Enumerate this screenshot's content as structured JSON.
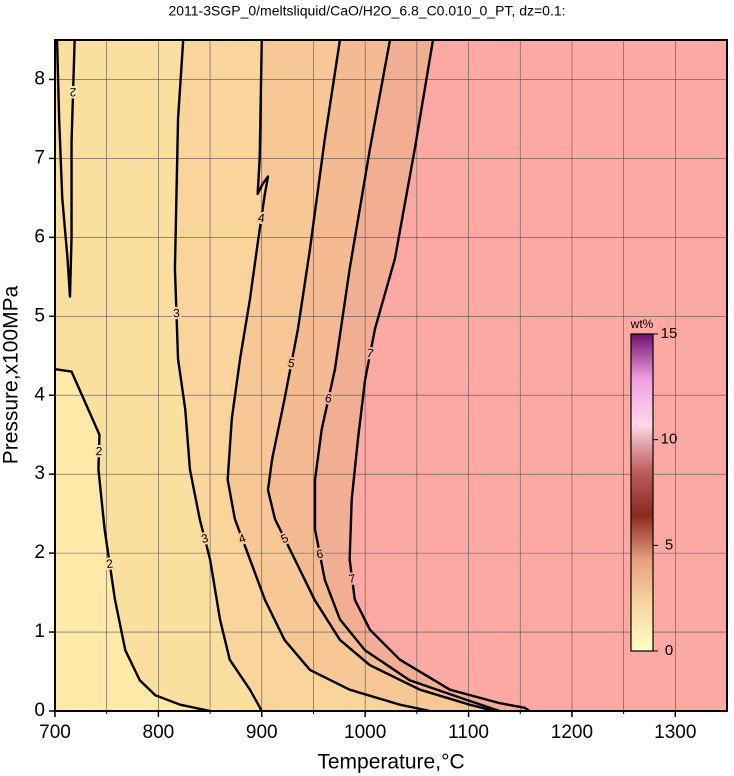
{
  "chart_data": {
    "type": "contour",
    "title": "2011-3SGP_0/meltsliquid/CaO/H2O_6.8_C0.010_0_PT, dz=0.1:",
    "xlabel": "Temperature,°C",
    "ylabel": "Pressure,x100MPa",
    "xlim": [
      700,
      1350
    ],
    "ylim": [
      0,
      8.5
    ],
    "xticks": [
      700,
      800,
      900,
      1000,
      1100,
      1200,
      1300
    ],
    "xminorticks": [
      750,
      850,
      950,
      1050,
      1150,
      1250
    ],
    "yticks": [
      0,
      1,
      2,
      3,
      4,
      5,
      6,
      7,
      8
    ],
    "grid": true,
    "background": "#fde9a8",
    "contours": [
      {
        "level": 2,
        "fill": "#fbdf9f",
        "x": [
          700,
          716,
          743,
          742,
          748,
          758,
          768,
          782,
          797,
          821,
          850
        ],
        "y": [
          4.33,
          4.3,
          3.5,
          3.06,
          2.3,
          1.41,
          0.77,
          0.39,
          0.2,
          0.08,
          0
        ]
      },
      {
        "level": 2,
        "fill": null,
        "x": [
          702,
          704,
          707,
          712,
          714.5,
          716,
          716,
          719
        ],
        "y": [
          8.5,
          7.5,
          6.5,
          5.75,
          5.25,
          6.0,
          7.2,
          8.5
        ]
      },
      {
        "level": 3,
        "fill": "#f9d49b",
        "x": [
          824,
          819,
          816,
          819,
          826,
          830.5,
          840,
          850,
          859.6,
          869,
          888.6,
          900
        ],
        "y": [
          8.5,
          7.5,
          5.6,
          4.46,
          3.82,
          3.06,
          2.43,
          1.92,
          1.16,
          0.65,
          0.27,
          0
        ]
      },
      {
        "level": 4,
        "fill": "#f7c896",
        "x": [
          900,
          898,
          896,
          901,
          906,
          903,
          896,
          888.6,
          879,
          871,
          867,
          874,
          888.6,
          903,
          922,
          946.6,
          985,
          1033.6,
          1062.7
        ],
        "y": [
          8.5,
          7.0,
          6.55,
          6.68,
          6.77,
          6.55,
          5.92,
          5.22,
          4.46,
          3.7,
          2.93,
          2.43,
          1.92,
          1.41,
          0.9,
          0.52,
          0.27,
          0.08,
          0
        ]
      },
      {
        "level": 5,
        "fill": "#f4bb93",
        "x": [
          975.6,
          961,
          946.6,
          935,
          922,
          910,
          906,
          912.8,
          932,
          951,
          975.6,
          1004.6,
          1053,
          1101,
          1125.5
        ],
        "y": [
          8.5,
          7.25,
          5.85,
          4.84,
          3.95,
          3.19,
          2.8,
          2.43,
          1.92,
          1.41,
          0.9,
          0.58,
          0.27,
          0.08,
          0
        ]
      },
      {
        "level": 6,
        "fill": "#f1ae92",
        "x": [
          1024,
          1004.6,
          985,
          970.8,
          958,
          951.5,
          951.5,
          961,
          975.6,
          999.8,
          1043,
          1091.7,
          1130
        ],
        "y": [
          8.5,
          7.12,
          5.6,
          4.33,
          3.57,
          2.93,
          2.3,
          1.66,
          1.16,
          0.77,
          0.39,
          0.17,
          0
        ]
      },
      {
        "level": 7,
        "fill": "#fca8a3",
        "x": [
          1065.6,
          1048,
          1028.8,
          1009.5,
          1000,
          993,
          987,
          985,
          990,
          1004.6,
          1033.6,
          1082,
          1130,
          1154.5,
          1159
        ],
        "y": [
          8.5,
          7.12,
          5.73,
          4.84,
          4.2,
          3.44,
          2.68,
          1.92,
          1.41,
          1.03,
          0.65,
          0.27,
          0.1,
          0.04,
          0
        ]
      }
    ],
    "colorbar": {
      "label": "wt%",
      "lim": [
        0,
        15
      ],
      "ticks": [
        0,
        5,
        10,
        15
      ],
      "colors": [
        "#ffffc8",
        "#f7d8a0",
        "#e8a080",
        "#8a2a20",
        "#c06060",
        "#ffd8e8",
        "#f0a0e0",
        "#701070"
      ]
    }
  }
}
